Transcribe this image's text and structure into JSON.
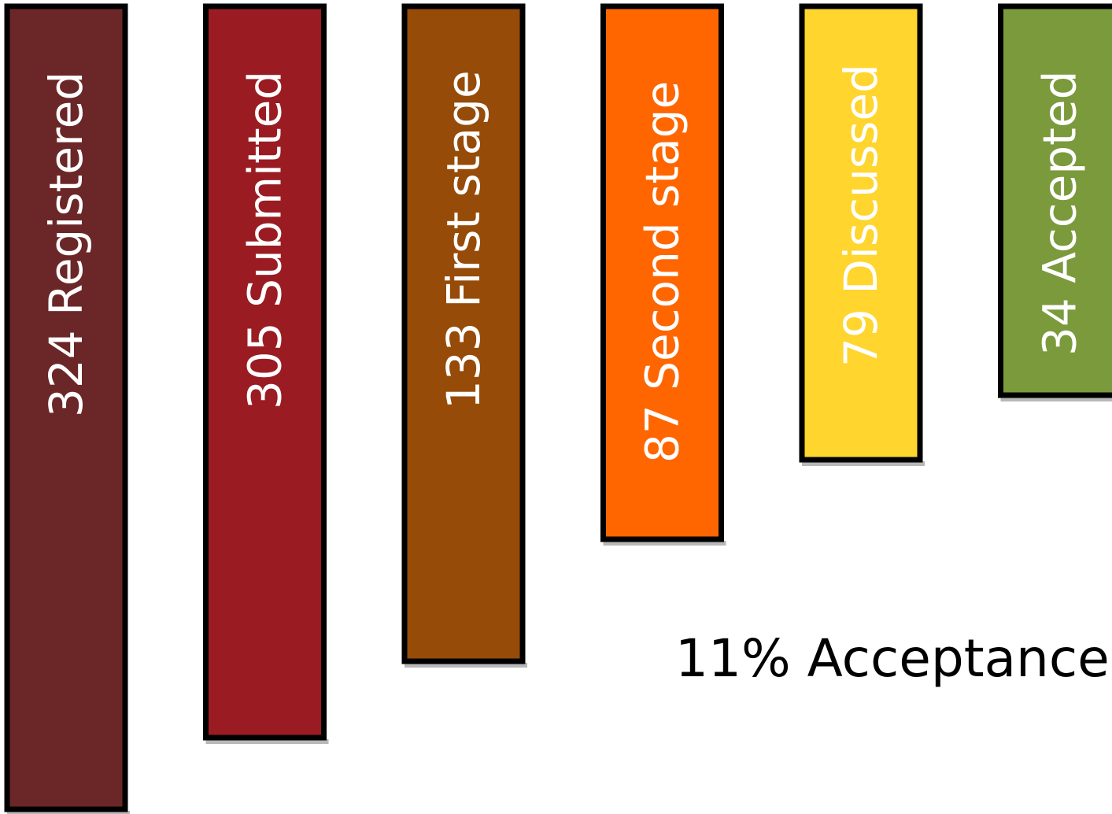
{
  "chart_data": {
    "type": "bar",
    "orientation": "vertical",
    "categories": [
      "Registered",
      "Submitted",
      "First stage",
      "Second stage",
      "Discussed",
      "Accepted"
    ],
    "values": [
      324,
      305,
      133,
      87,
      79,
      34
    ],
    "labels": [
      "324 Registered",
      "305 Submitted",
      "133 First stage",
      "87 Second stage",
      "79 Discussed",
      "34 Accepted"
    ],
    "colors": [
      "#6b2728",
      "#9a1c22",
      "#964b08",
      "#ff6600",
      "#ffd52e",
      "#7a9a3c"
    ],
    "label_colors": [
      "#ffffff",
      "#ffffff",
      "#ffffff",
      "#ffffff",
      "#ffffff",
      "#ffffff"
    ],
    "annotation": "11% Acceptance",
    "title": "",
    "xlabel": "",
    "ylabel": "",
    "ylim": [
      0,
      324
    ],
    "grid": false,
    "legend": "none"
  }
}
